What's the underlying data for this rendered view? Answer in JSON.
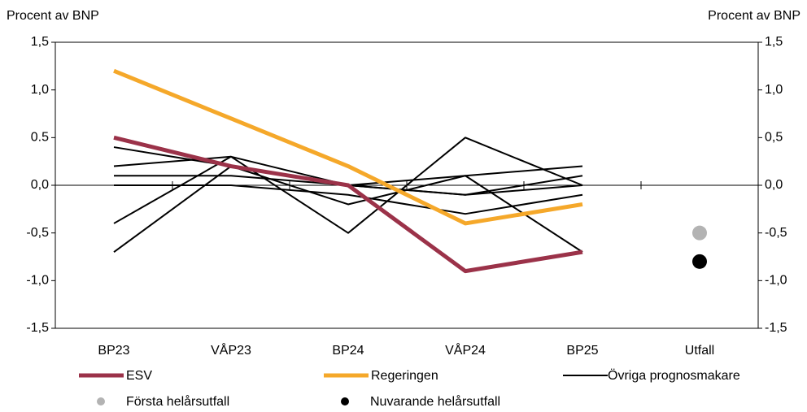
{
  "chart_data": {
    "type": "line",
    "y_label": "Procent av BNP",
    "y2_label": "Procent av BNP",
    "categories": [
      "BP23",
      "VÅP23",
      "BP24",
      "VÅP24",
      "BP25",
      "Utfall"
    ],
    "ylim": [
      -1.5,
      1.5
    ],
    "yticks": [
      {
        "value": 1.5,
        "label": "1,5"
      },
      {
        "value": 1.0,
        "label": "1,0"
      },
      {
        "value": 0.5,
        "label": "0.5"
      },
      {
        "value": 0.0,
        "label": "0,0"
      },
      {
        "value": -0.5,
        "label": "-0,5"
      },
      {
        "value": -1.0,
        "label": "-1,0"
      },
      {
        "value": -1.5,
        "label": "-1,5"
      }
    ],
    "y2lim": [
      -1.5,
      1.5
    ],
    "y2ticks": [
      {
        "value": 1.5,
        "label": "1,5"
      },
      {
        "value": 1.0,
        "label": "1,0"
      },
      {
        "value": 0.5,
        "label": "0,5"
      },
      {
        "value": 0.0,
        "label": "0,0"
      },
      {
        "value": -0.5,
        "label": "-0,5"
      },
      {
        "value": -1.0,
        "label": "-1,0"
      },
      {
        "value": -1.5,
        "label": "-1,5"
      }
    ],
    "series": [
      {
        "name": "ESV",
        "color": "#9b3249",
        "values": [
          0.5,
          0.2,
          0.0,
          -0.9,
          -0.7,
          null
        ]
      },
      {
        "name": "Regeringen",
        "color": "#f5a82a",
        "values": [
          1.2,
          0.7,
          0.2,
          -0.4,
          -0.2,
          null
        ]
      },
      {
        "name": "Övriga prognosmakare",
        "color": "#000000",
        "lines": [
          [
            0.4,
            0.2,
            0.0,
            -0.1,
            0.0,
            null
          ],
          [
            0.2,
            0.3,
            0.0,
            -0.1,
            0.1,
            null
          ],
          [
            0.1,
            0.1,
            0.0,
            0.1,
            0.2,
            null
          ],
          [
            0.0,
            0.0,
            -0.1,
            -0.3,
            -0.1,
            null
          ],
          [
            -0.4,
            0.3,
            -0.5,
            0.5,
            0.0,
            null
          ],
          [
            -0.7,
            0.2,
            -0.2,
            0.1,
            -0.7,
            null
          ]
        ]
      }
    ],
    "points": [
      {
        "name": "Första helårsutfall",
        "color": "#b3b3b3",
        "category": 5,
        "value": -0.5
      },
      {
        "name": "Nuvarande helårsutfall",
        "color": "#000000",
        "category": 5,
        "value": -0.8
      }
    ]
  }
}
